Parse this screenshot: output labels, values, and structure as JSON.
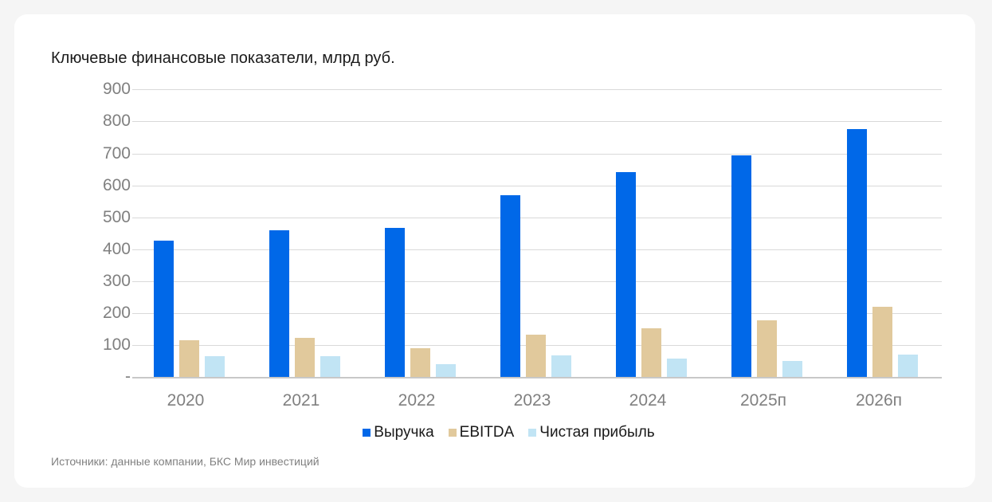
{
  "chart": {
    "title": "Ключевые финансовые показатели, млрд руб.",
    "source": "Источники: данные компании, БКС Мир инвестиций",
    "y_ticks": [
      "900",
      "800",
      "700",
      "600",
      "500",
      "400",
      "300",
      "200",
      "100",
      "-"
    ],
    "legend": [
      {
        "label": "Выручка",
        "color": "#0068e8"
      },
      {
        "label": "EBITDA",
        "color": "#e1c99c"
      },
      {
        "label": "Чистая прибыль",
        "color": "#c1e4f4"
      }
    ]
  },
  "chart_data": {
    "type": "bar",
    "title": "Ключевые финансовые показатели, млрд руб.",
    "xlabel": "",
    "ylabel": "",
    "ylim": [
      0,
      900
    ],
    "yticks": [
      0,
      100,
      200,
      300,
      400,
      500,
      600,
      700,
      800,
      900
    ],
    "zero_tick_label": "-",
    "grid": true,
    "legend_position": "bottom",
    "categories": [
      "2020",
      "2021",
      "2022",
      "2023",
      "2024",
      "2025п",
      "2026п"
    ],
    "series": [
      {
        "name": "Выручка",
        "color": "#0068e8",
        "values": [
          426,
          459,
          468,
          569,
          642,
          694,
          775
        ]
      },
      {
        "name": "EBITDA",
        "color": "#e1c99c",
        "values": [
          116,
          122,
          91,
          132,
          152,
          178,
          219
        ]
      },
      {
        "name": "Чистая прибыль",
        "color": "#c1e4f4",
        "values": [
          65,
          65,
          41,
          68,
          58,
          51,
          71
        ]
      }
    ],
    "source": "Источники: данные компании, БКС Мир инвестиций"
  }
}
